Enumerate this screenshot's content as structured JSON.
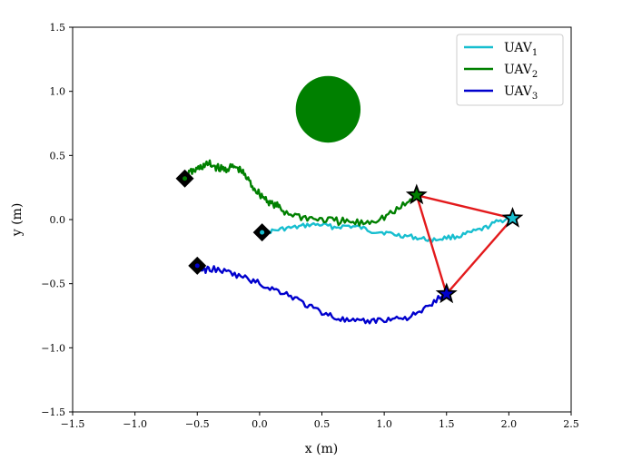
{
  "chart_data": {
    "type": "line",
    "xlabel": "x (m)",
    "ylabel": "y (m)",
    "xlim": [
      -1.5,
      2.5
    ],
    "ylim": [
      -1.5,
      1.5
    ],
    "xticks": [
      -1.5,
      -1.0,
      -0.5,
      0.0,
      0.5,
      1.0,
      1.5,
      2.0,
      2.5
    ],
    "xtick_labels": [
      "−1.5",
      "−1.0",
      "−0.5",
      "0.0",
      "0.5",
      "1.0",
      "1.5",
      "2.0",
      "2.5"
    ],
    "yticks": [
      -1.5,
      -1.0,
      -0.5,
      0.0,
      0.5,
      1.0,
      1.5
    ],
    "ytick_labels": [
      "−1.5",
      "−1.0",
      "−0.5",
      "0.0",
      "0.5",
      "1.0",
      "1.5"
    ],
    "grid": false,
    "legend": {
      "placement": "top-right"
    },
    "series": [
      {
        "name": "UAV",
        "subscript": "1",
        "color": "#17becf",
        "start": [
          0.02,
          -0.1
        ],
        "end": [
          2.03,
          0.01
        ],
        "x": [
          0.02,
          0.1,
          0.2,
          0.3,
          0.4,
          0.5,
          0.6,
          0.7,
          0.8,
          0.9,
          1.0,
          1.1,
          1.2,
          1.3,
          1.4,
          1.5,
          1.6,
          1.7,
          1.8,
          1.9,
          2.0,
          2.03
        ],
        "y": [
          -0.1,
          -0.09,
          -0.07,
          -0.06,
          -0.04,
          -0.04,
          -0.06,
          -0.05,
          -0.06,
          -0.09,
          -0.1,
          -0.12,
          -0.13,
          -0.15,
          -0.16,
          -0.14,
          -0.13,
          -0.1,
          -0.07,
          -0.02,
          0.01,
          0.01
        ]
      },
      {
        "name": "UAV",
        "subscript": "2",
        "color": "#008000",
        "start": [
          -0.6,
          0.32
        ],
        "end": [
          1.26,
          0.19
        ],
        "x": [
          -0.6,
          -0.55,
          -0.5,
          -0.45,
          -0.4,
          -0.35,
          -0.3,
          -0.25,
          -0.2,
          -0.15,
          -0.1,
          -0.05,
          0.0,
          0.05,
          0.1,
          0.15,
          0.2,
          0.3,
          0.4,
          0.5,
          0.6,
          0.7,
          0.8,
          0.9,
          1.0,
          1.1,
          1.2,
          1.26
        ],
        "y": [
          0.32,
          0.37,
          0.39,
          0.42,
          0.43,
          0.41,
          0.39,
          0.4,
          0.41,
          0.38,
          0.32,
          0.25,
          0.2,
          0.16,
          0.12,
          0.1,
          0.06,
          0.03,
          0.01,
          0.0,
          -0.01,
          -0.02,
          -0.03,
          -0.01,
          0.02,
          0.07,
          0.14,
          0.19
        ]
      },
      {
        "name": "UAV",
        "subscript": "3",
        "color": "#0000cd",
        "start": [
          -0.5,
          -0.36
        ],
        "end": [
          1.5,
          -0.58
        ],
        "x": [
          -0.5,
          -0.45,
          -0.4,
          -0.3,
          -0.2,
          -0.1,
          0.0,
          0.1,
          0.2,
          0.3,
          0.4,
          0.5,
          0.6,
          0.7,
          0.8,
          0.9,
          1.0,
          1.1,
          1.2,
          1.3,
          1.4,
          1.5
        ],
        "y": [
          -0.36,
          -0.4,
          -0.38,
          -0.4,
          -0.43,
          -0.46,
          -0.5,
          -0.54,
          -0.57,
          -0.62,
          -0.68,
          -0.72,
          -0.76,
          -0.79,
          -0.8,
          -0.79,
          -0.78,
          -0.77,
          -0.76,
          -0.72,
          -0.64,
          -0.58
        ]
      }
    ],
    "start_markers": [
      [
        0.02,
        -0.1
      ],
      [
        -0.6,
        0.32
      ],
      [
        -0.5,
        -0.36
      ]
    ],
    "formation": {
      "color": "#e31a1c",
      "vertices": [
        [
          1.26,
          0.19
        ],
        [
          2.03,
          0.01
        ],
        [
          1.5,
          -0.58
        ]
      ]
    },
    "obstacle": {
      "center": [
        0.55,
        0.86
      ],
      "radius": 0.26,
      "color": "#008000"
    }
  }
}
